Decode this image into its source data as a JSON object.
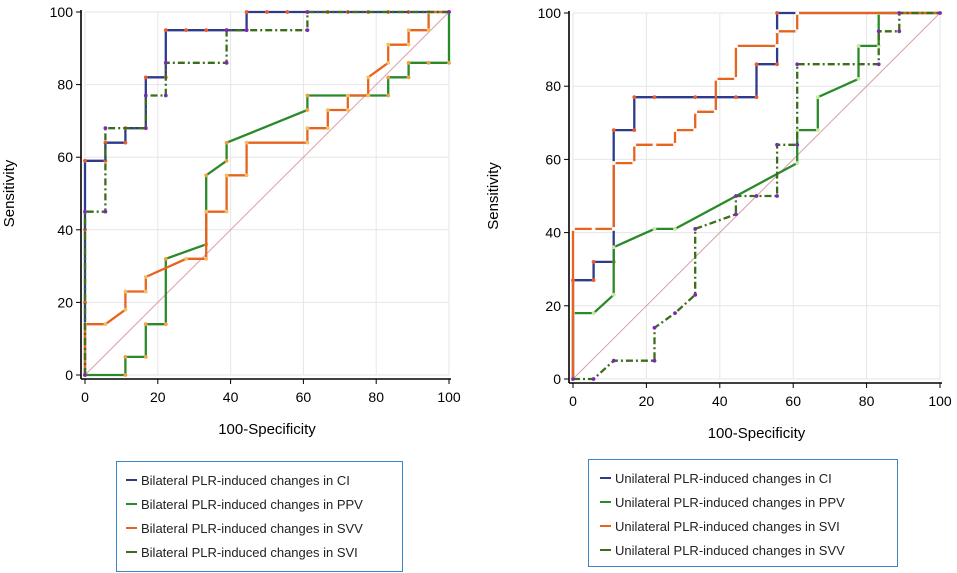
{
  "chart_data": [
    {
      "type": "line",
      "xlabel": "100-Specificity",
      "ylabel": "Sensitivity",
      "xlim": [
        0,
        100
      ],
      "ylim": [
        0,
        100
      ],
      "xticks": [
        "0",
        "20",
        "40",
        "60",
        "80",
        "100"
      ],
      "yticks": [
        "0",
        "20",
        "40",
        "60",
        "80",
        "100"
      ],
      "grid": true,
      "reference_line": {
        "from": [
          0,
          0
        ],
        "to": [
          100,
          100
        ],
        "color": "#d9a0a6"
      },
      "series": [
        {
          "name": "Bilateral PLR-induced changes in CI",
          "color": "#2e3a8c",
          "marker_color": "#ee5a2b",
          "dash": "solid",
          "x": [
            0,
            0,
            0,
            0,
            5.6,
            5.6,
            11.1,
            11.1,
            16.7,
            16.7,
            22.2,
            22.2,
            27.8,
            33.3,
            38.9,
            44.4,
            44.4,
            50,
            55.6,
            61.1,
            66.7,
            72.2,
            77.8,
            83.3,
            88.9,
            94.4,
            100
          ],
          "y": [
            0,
            20,
            40,
            59,
            59,
            64,
            64,
            68,
            68,
            82,
            82,
            95,
            95,
            95,
            95,
            95,
            100,
            100,
            100,
            100,
            100,
            100,
            100,
            100,
            100,
            100,
            100
          ]
        },
        {
          "name": "Bilateral PLR-induced changes in PPV",
          "color": "#2a8a2a",
          "marker_color": "#f0a040",
          "dash": "solid",
          "x": [
            0,
            11.1,
            11.1,
            16.7,
            16.7,
            22.2,
            22.2,
            33.3,
            33.3,
            38.9,
            38.9,
            61.1,
            61.1,
            77.8,
            83.3,
            83.3,
            88.9,
            88.9,
            94.4,
            100,
            100
          ],
          "y": [
            0,
            0,
            5,
            5,
            14,
            14,
            32,
            36,
            55,
            59,
            64,
            73,
            77,
            77,
            77,
            82,
            82,
            86,
            86,
            86,
            100
          ]
        },
        {
          "name": "Bilateral PLR-induced changes in SVV",
          "color": "#e8641e",
          "marker_color": "#f0c060",
          "dash": "solid",
          "x": [
            0,
            0,
            5.6,
            11.1,
            11.1,
            16.7,
            16.7,
            27.8,
            33.3,
            33.3,
            38.9,
            38.9,
            44.4,
            44.4,
            61.1,
            61.1,
            66.7,
            66.7,
            72.2,
            72.2,
            77.8,
            77.8,
            83.3,
            83.3,
            88.9,
            88.9,
            94.4,
            94.4,
            100
          ],
          "y": [
            0,
            14,
            14,
            18,
            23,
            23,
            27,
            32,
            32,
            45,
            45,
            55,
            55,
            64,
            64,
            68,
            68,
            73,
            73,
            77,
            77,
            82,
            86,
            91,
            91,
            95,
            95,
            100,
            100
          ]
        },
        {
          "name": "Bilateral PLR-induced changes in SVI",
          "color": "#3a6e1a",
          "marker_color": "#7a2ab0",
          "dash": "dashdot",
          "x": [
            0,
            0,
            5.6,
            5.6,
            16.7,
            16.7,
            22.2,
            22.2,
            38.9,
            38.9,
            44.4,
            61.1,
            61.1,
            100
          ],
          "y": [
            0,
            45,
            45,
            68,
            68,
            77,
            77,
            86,
            86,
            95,
            95,
            95,
            100,
            100
          ]
        }
      ],
      "legend": {
        "placement": "below"
      }
    },
    {
      "type": "line",
      "xlabel": "100-Specificity",
      "ylabel": "Sensitivity",
      "xlim": [
        0,
        100
      ],
      "ylim": [
        0,
        100
      ],
      "xticks": [
        "0",
        "20",
        "40",
        "60",
        "80",
        "100"
      ],
      "yticks": [
        "0",
        "20",
        "40",
        "60",
        "80",
        "100"
      ],
      "grid": true,
      "reference_line": {
        "from": [
          0,
          0
        ],
        "to": [
          100,
          100
        ],
        "color": "#d9a0a6"
      },
      "series": [
        {
          "name": "Unilateral PLR-induced changes in CI",
          "color": "#2e3a8c",
          "marker_color": "#ee5a2b",
          "dash": "solid",
          "x": [
            0,
            0,
            5.6,
            5.6,
            11.1,
            11.1,
            16.7,
            16.7,
            22.2,
            33.3,
            44.4,
            50,
            50,
            55.6,
            55.6,
            61.1,
            100
          ],
          "y": [
            0,
            27,
            27,
            32,
            32,
            68,
            68,
            77,
            77,
            77,
            77,
            77,
            86,
            86,
            100,
            100,
            100
          ]
        },
        {
          "name": "Unilateral PLR-induced changes in PPV",
          "color": "#2a8a2a",
          "marker_color": "#c8e8a0",
          "dash": "solid",
          "x": [
            0,
            0,
            5.6,
            11.1,
            11.1,
            22.2,
            27.8,
            61.1,
            61.1,
            66.7,
            66.7,
            77.8,
            77.8,
            83.3,
            83.3,
            100
          ],
          "y": [
            0,
            18,
            18,
            23,
            36,
            41,
            41,
            59,
            68,
            68,
            77,
            82,
            91,
            91,
            100,
            100
          ]
        },
        {
          "name": "Unilateral PLR-induced changes in SVI",
          "color": "#e8641e",
          "marker_color": "#ffffff",
          "dash": "solid",
          "x": [
            0,
            0,
            5.6,
            11.1,
            11.1,
            16.7,
            16.7,
            22.2,
            27.8,
            27.8,
            33.3,
            33.3,
            38.9,
            38.9,
            44.4,
            44.4,
            55.6,
            55.6,
            61.1,
            61.1,
            100
          ],
          "y": [
            0,
            41,
            41,
            41,
            59,
            59,
            64,
            64,
            64,
            68,
            68,
            73,
            73,
            82,
            82,
            91,
            91,
            95,
            95,
            100,
            100
          ]
        },
        {
          "name": "Unilateral PLR-induced changes in SVV",
          "color": "#3a6e1a",
          "marker_color": "#7a2ab0",
          "dash": "dashdot",
          "x": [
            0,
            5.6,
            11.1,
            22.2,
            22.2,
            27.8,
            33.3,
            33.3,
            44.4,
            44.4,
            50,
            55.6,
            55.6,
            61.1,
            61.1,
            83.3,
            83.3,
            88.9,
            88.9,
            100
          ],
          "y": [
            0,
            0,
            5,
            5,
            14,
            18,
            23,
            41,
            45,
            50,
            50,
            50,
            64,
            64,
            86,
            86,
            95,
            95,
            100,
            100
          ]
        }
      ],
      "legend": {
        "placement": "below"
      }
    }
  ]
}
